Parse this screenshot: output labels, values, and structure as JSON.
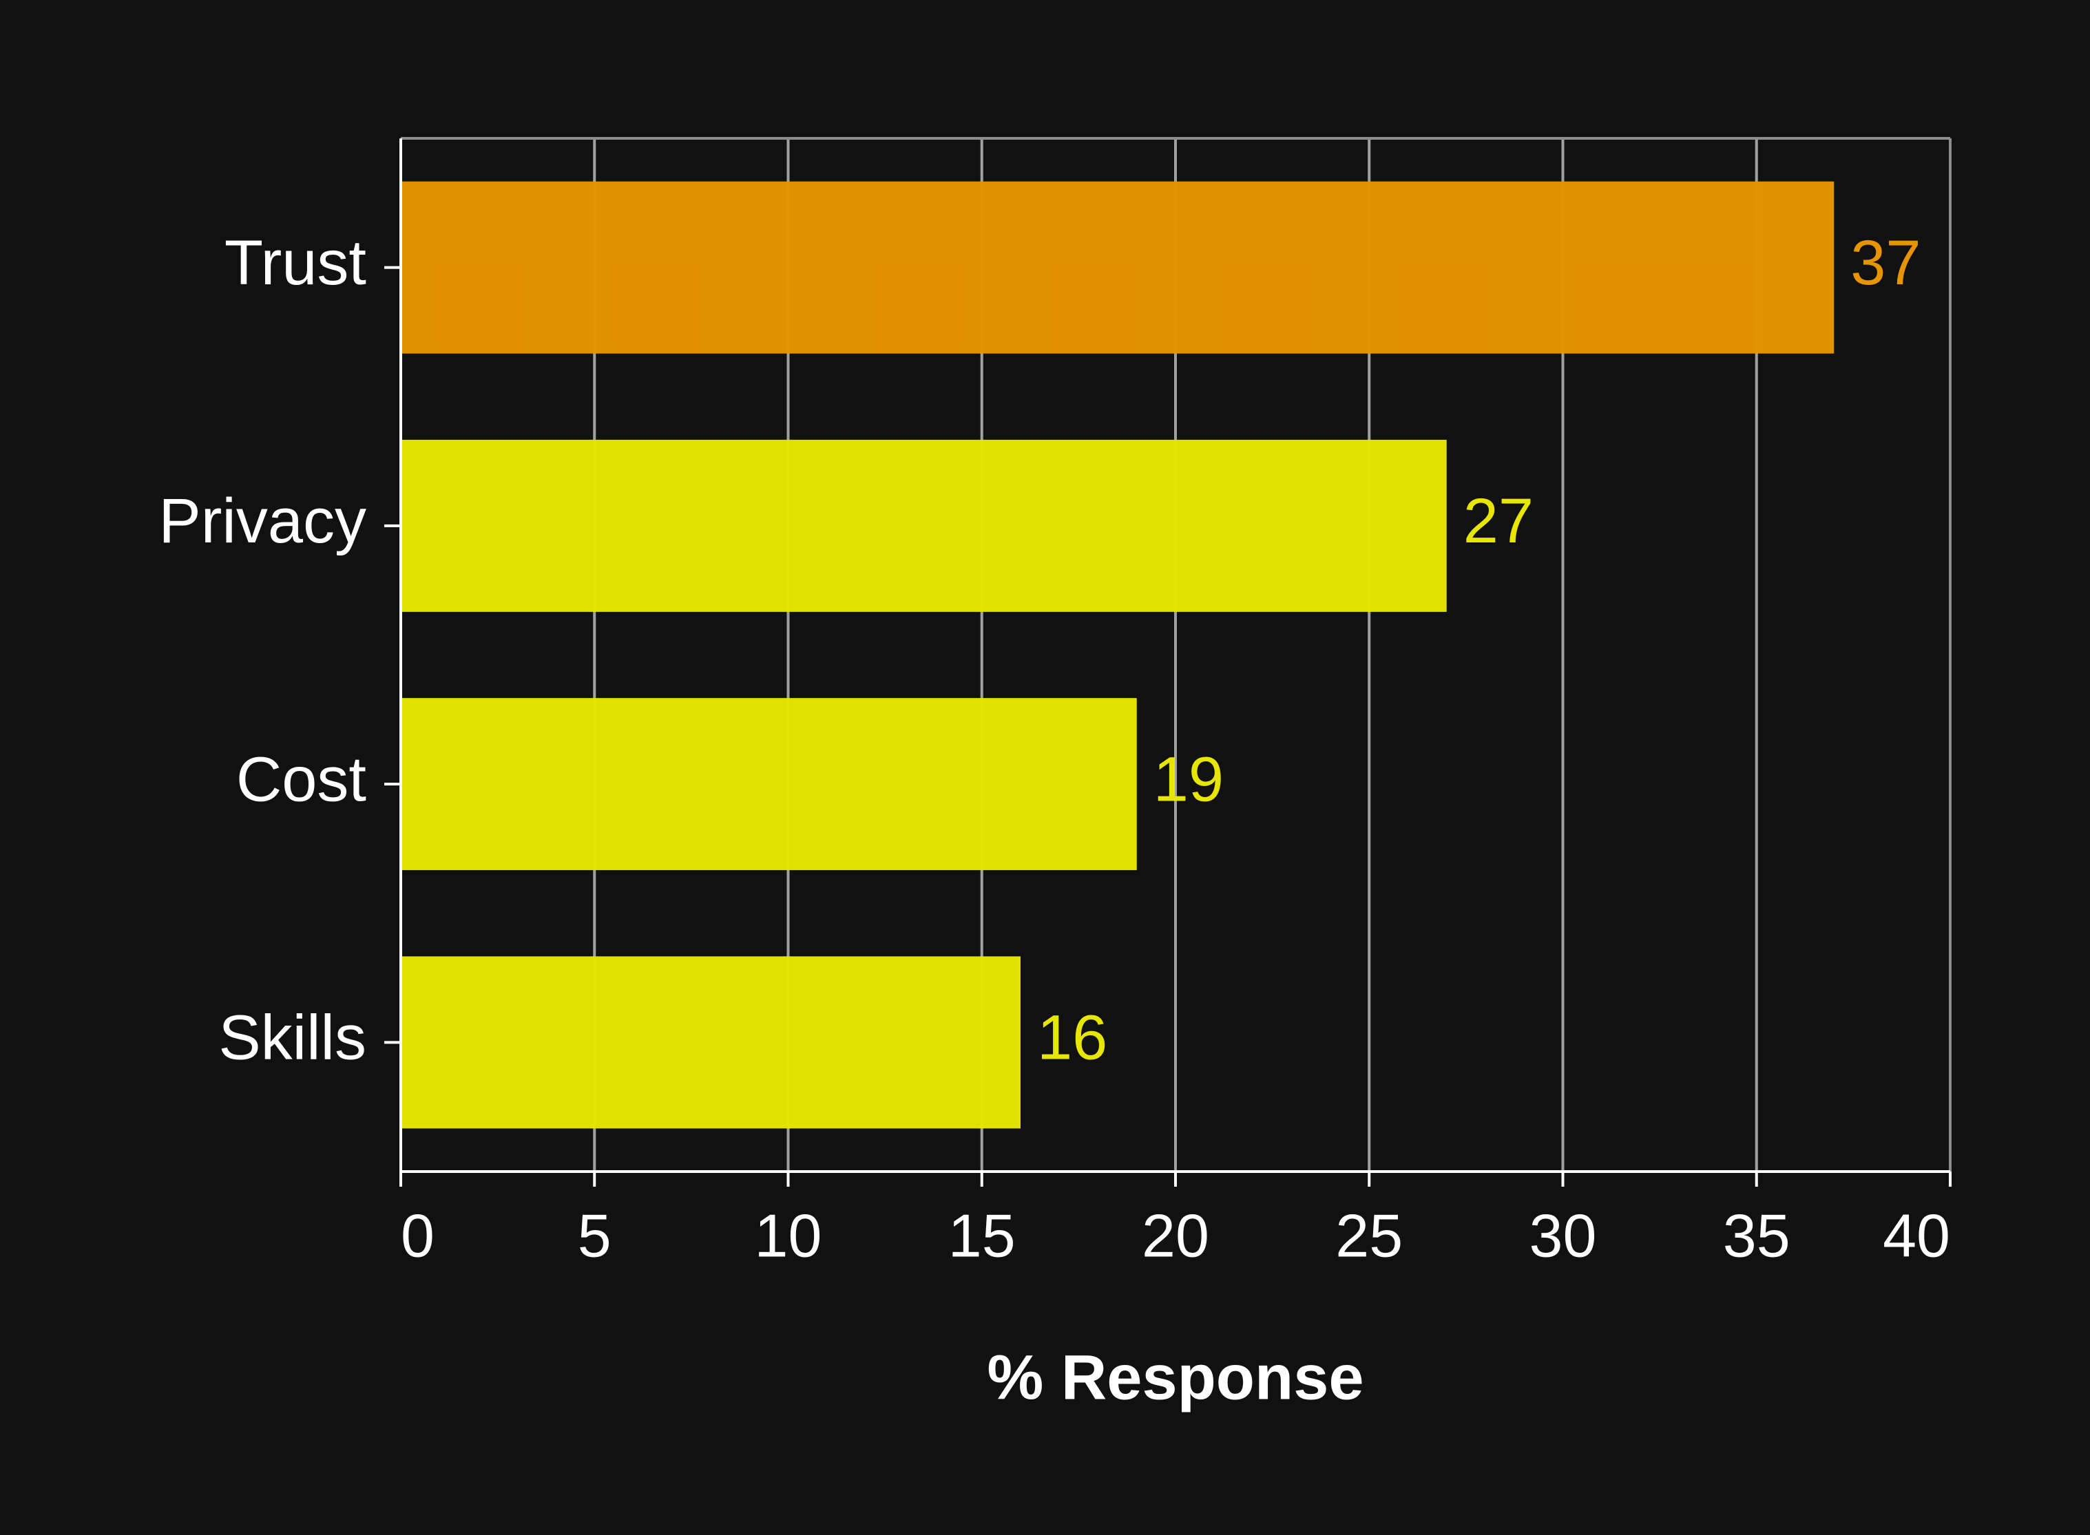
{
  "chart_data": {
    "type": "bar",
    "orientation": "horizontal",
    "categories": [
      "Trust",
      "Privacy",
      "Cost",
      "Skills"
    ],
    "values": [
      37,
      27,
      19,
      16
    ],
    "bar_colors": [
      "#E69500",
      "#E6E600",
      "#E6E600",
      "#E6E600"
    ],
    "highlight_color": "#E69500",
    "base_color": "#E6E600",
    "title": "",
    "xlabel": "% Response",
    "ylabel": "",
    "xlim": [
      0,
      40
    ],
    "xticks": [
      0,
      5,
      10,
      15,
      20,
      25,
      30,
      35,
      40
    ],
    "grid": "vertical",
    "data_labels": true,
    "colors": {
      "background": "#111111",
      "grid": "#8c8c8c",
      "axis": "#ffffff",
      "text": "#ffffff"
    }
  }
}
